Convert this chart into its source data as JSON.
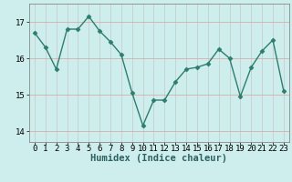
{
  "x": [
    0,
    1,
    2,
    3,
    4,
    5,
    6,
    7,
    8,
    9,
    10,
    11,
    12,
    13,
    14,
    15,
    16,
    17,
    18,
    19,
    20,
    21,
    22,
    23
  ],
  "y": [
    16.7,
    16.3,
    15.7,
    16.8,
    16.8,
    17.15,
    16.75,
    16.45,
    16.1,
    15.05,
    14.15,
    14.85,
    14.85,
    15.35,
    15.7,
    15.75,
    15.85,
    16.25,
    16.0,
    14.95,
    15.75,
    16.2,
    16.5,
    15.1
  ],
  "line_color": "#2d7d6e",
  "marker": "D",
  "marker_size": 2.5,
  "bg_color": "#ceeeed",
  "grid_color": "#b8d8d7",
  "xlabel": "Humidex (Indice chaleur)",
  "ylim": [
    13.7,
    17.5
  ],
  "xlim": [
    -0.5,
    23.5
  ],
  "yticks": [
    14,
    15,
    16,
    17
  ],
  "xticks": [
    0,
    1,
    2,
    3,
    4,
    5,
    6,
    7,
    8,
    9,
    10,
    11,
    12,
    13,
    14,
    15,
    16,
    17,
    18,
    19,
    20,
    21,
    22,
    23
  ],
  "tick_labelsize": 6.5,
  "xlabel_fontsize": 7.5,
  "line_width": 1.0
}
